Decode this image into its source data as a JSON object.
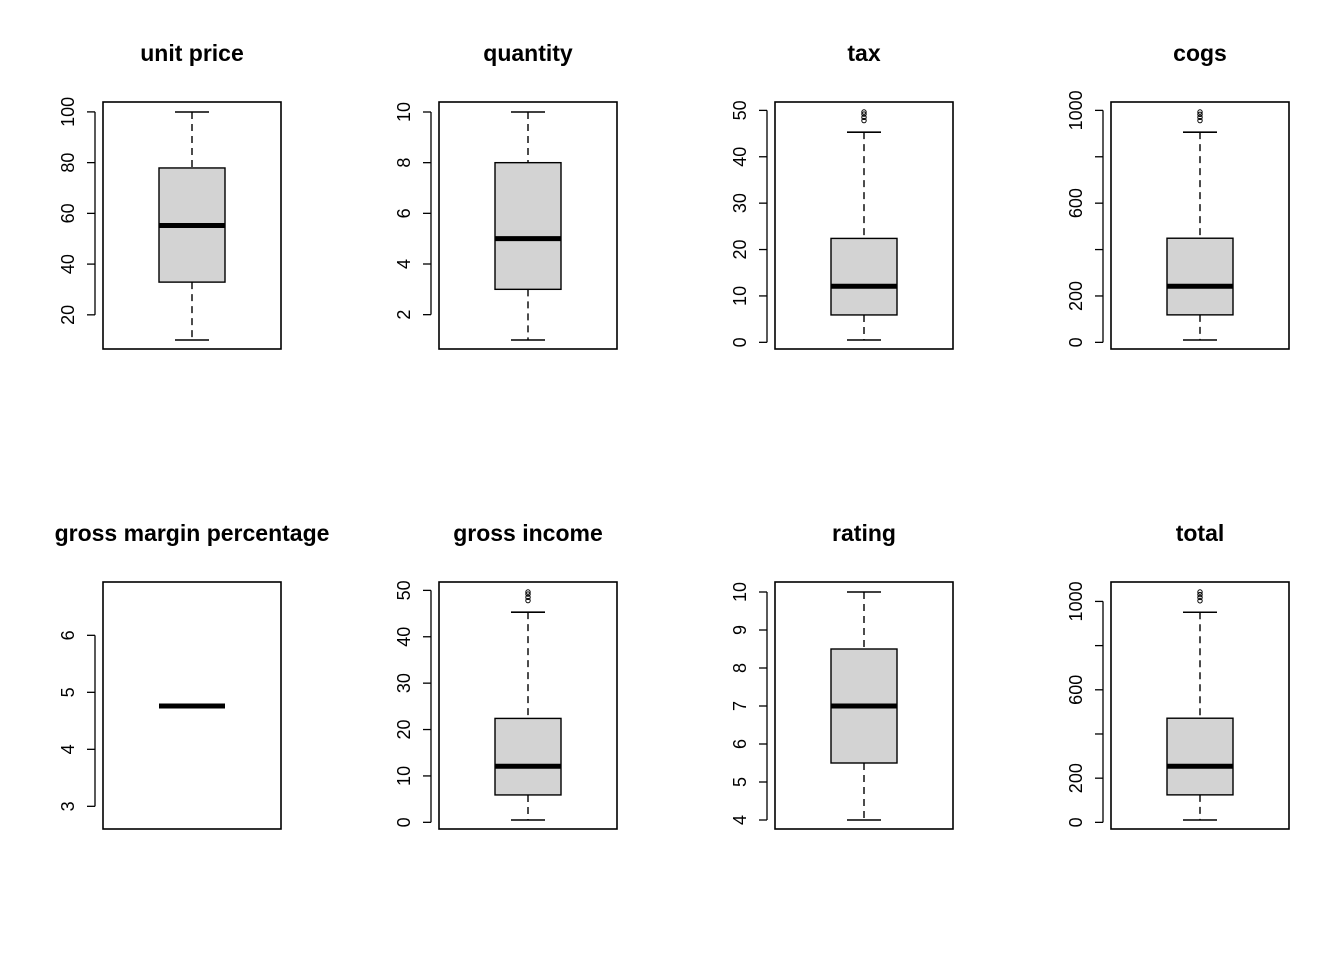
{
  "chart_data": [
    {
      "type": "boxplot",
      "title": "unit price",
      "ylim": [
        10.08,
        99.96
      ],
      "yticks": [
        20,
        40,
        60,
        80,
        100
      ],
      "ytick_labels": [
        "20",
        "40",
        "60",
        "80",
        "100"
      ],
      "box": {
        "whisker_low": 10.08,
        "q1": 32.9,
        "median": 55.2,
        "q3": 77.9,
        "whisker_high": 99.96
      },
      "outliers": []
    },
    {
      "type": "boxplot",
      "title": "quantity",
      "ylim": [
        1,
        10
      ],
      "yticks": [
        2,
        4,
        6,
        8,
        10
      ],
      "ytick_labels": [
        "2",
        "4",
        "6",
        "8",
        "10"
      ],
      "box": {
        "whisker_low": 1,
        "q1": 3,
        "median": 5,
        "q3": 8,
        "whisker_high": 10
      },
      "outliers": []
    },
    {
      "type": "boxplot",
      "title": "tax",
      "ylim": [
        0.5,
        49.65
      ],
      "yticks": [
        0,
        10,
        20,
        30,
        40,
        50
      ],
      "ytick_labels": [
        "0",
        "10",
        "20",
        "30",
        "40",
        "50"
      ],
      "box": {
        "whisker_low": 0.5,
        "q1": 5.9,
        "median": 12.1,
        "q3": 22.4,
        "whisker_high": 45.3
      },
      "outliers": [
        47.8,
        48.5,
        49.2,
        49.65
      ]
    },
    {
      "type": "boxplot",
      "title": "cogs",
      "ylim": [
        10.17,
        993.0
      ],
      "yticks": [
        0,
        200,
        400,
        600,
        800,
        1000
      ],
      "ytick_labels": [
        "0",
        "200",
        "",
        "600",
        "",
        "1000"
      ],
      "box": {
        "whisker_low": 10.17,
        "q1": 118.5,
        "median": 241.8,
        "q3": 448.9,
        "whisker_high": 906
      },
      "outliers": [
        956,
        970,
        983,
        993
      ]
    },
    {
      "type": "boxplot",
      "title": "gross margin percentage",
      "ylim": [
        2.76,
        6.76
      ],
      "yticks": [
        3,
        4,
        5,
        6
      ],
      "ytick_labels": [
        "3",
        "4",
        "5",
        "6"
      ],
      "box": {
        "whisker_low": 4.76,
        "q1": 4.76,
        "median": 4.76,
        "q3": 4.76,
        "whisker_high": 4.76
      },
      "outliers": []
    },
    {
      "type": "boxplot",
      "title": "gross income",
      "ylim": [
        0.5,
        49.65
      ],
      "yticks": [
        0,
        10,
        20,
        30,
        40,
        50
      ],
      "ytick_labels": [
        "0",
        "10",
        "20",
        "30",
        "40",
        "50"
      ],
      "box": {
        "whisker_low": 0.5,
        "q1": 5.9,
        "median": 12.1,
        "q3": 22.4,
        "whisker_high": 45.3
      },
      "outliers": [
        47.8,
        48.5,
        49.2,
        49.65
      ]
    },
    {
      "type": "boxplot",
      "title": "rating",
      "ylim": [
        4,
        10
      ],
      "yticks": [
        4,
        5,
        6,
        7,
        8,
        9,
        10
      ],
      "ytick_labels": [
        "4",
        "5",
        "6",
        "7",
        "8",
        "9",
        "10"
      ],
      "box": {
        "whisker_low": 4,
        "q1": 5.5,
        "median": 7.0,
        "q3": 8.5,
        "whisker_high": 10
      },
      "outliers": []
    },
    {
      "type": "boxplot",
      "title": "total",
      "ylim": [
        10.68,
        1042.65
      ],
      "yticks": [
        0,
        200,
        400,
        600,
        800,
        1000
      ],
      "ytick_labels": [
        "0",
        "200",
        "",
        "600",
        "",
        "1000"
      ],
      "box": {
        "whisker_low": 10.68,
        "q1": 124.4,
        "median": 253.8,
        "q3": 471.4,
        "whisker_high": 951
      },
      "outliers": [
        1003,
        1018,
        1031,
        1042.65
      ]
    }
  ],
  "colors": {
    "box_fill": "#d3d3d3",
    "stroke": "#000000",
    "background": "#ffffff"
  }
}
